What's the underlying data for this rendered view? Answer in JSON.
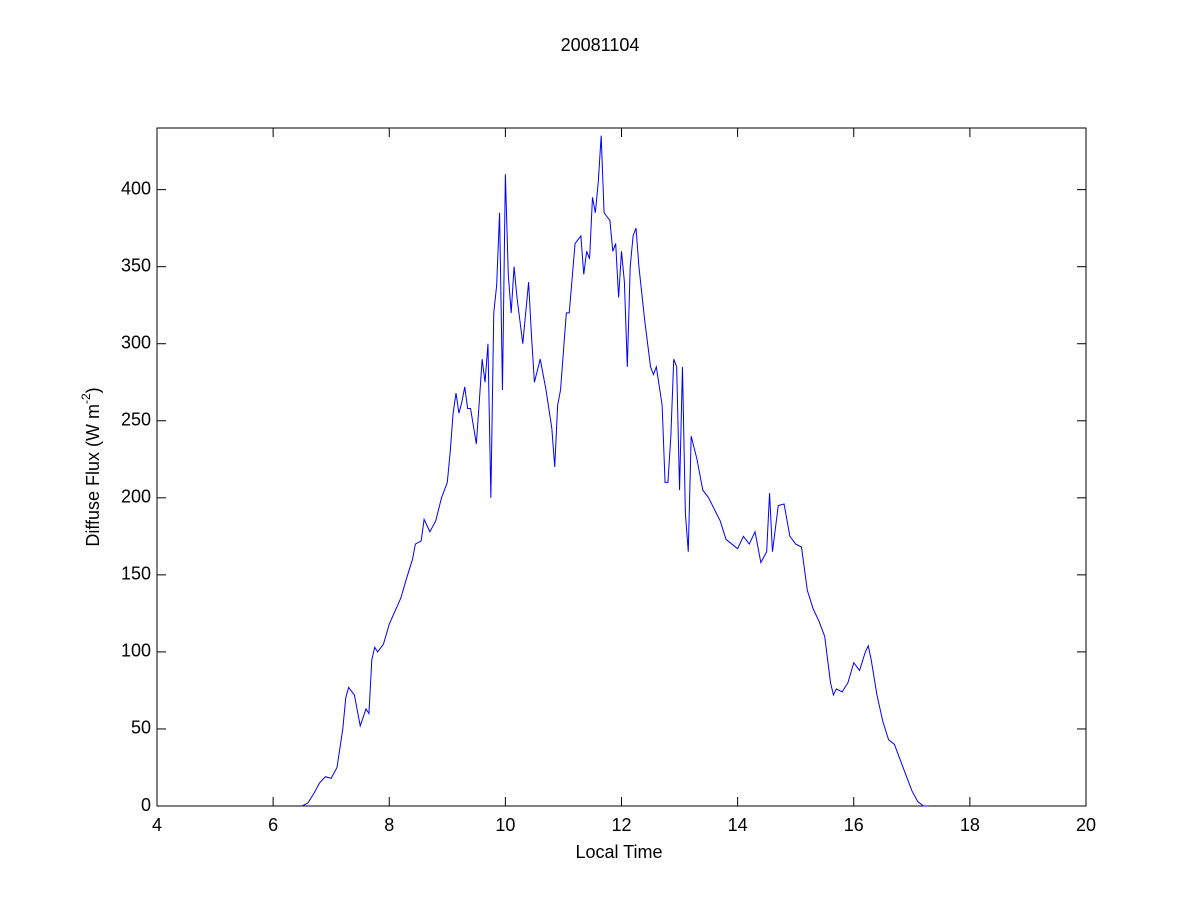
{
  "chart_data": {
    "type": "line",
    "title": "20081104",
    "xlabel": "Local Time",
    "ylabel": {
      "text": "Diffuse Flux (W m",
      "superscript": "-2",
      "suffix": ")"
    },
    "color": "#0000ff",
    "x": [
      6.5,
      6.6,
      6.7,
      6.8,
      6.9,
      7.0,
      7.1,
      7.2,
      7.25,
      7.3,
      7.4,
      7.5,
      7.6,
      7.65,
      7.7,
      7.75,
      7.8,
      7.9,
      8.0,
      8.2,
      8.3,
      8.4,
      8.45,
      8.55,
      8.6,
      8.7,
      8.8,
      8.9,
      9.0,
      9.05,
      9.1,
      9.15,
      9.2,
      9.25,
      9.3,
      9.35,
      9.4,
      9.5,
      9.55,
      9.6,
      9.65,
      9.7,
      9.75,
      9.8,
      9.85,
      9.9,
      9.95,
      10.0,
      10.05,
      10.1,
      10.15,
      10.2,
      10.3,
      10.4,
      10.45,
      10.5,
      10.6,
      10.7,
      10.8,
      10.85,
      10.9,
      10.95,
      11.0,
      11.05,
      11.1,
      11.2,
      11.3,
      11.35,
      11.4,
      11.45,
      11.5,
      11.55,
      11.6,
      11.65,
      11.7,
      11.8,
      11.85,
      11.9,
      11.95,
      12.0,
      12.05,
      12.1,
      12.15,
      12.2,
      12.25,
      12.3,
      12.4,
      12.5,
      12.55,
      12.6,
      12.7,
      12.75,
      12.8,
      12.85,
      12.9,
      12.95,
      13.0,
      13.05,
      13.1,
      13.15,
      13.2,
      13.3,
      13.4,
      13.5,
      13.7,
      13.8,
      13.9,
      14.0,
      14.1,
      14.2,
      14.3,
      14.4,
      14.5,
      14.55,
      14.6,
      14.7,
      14.8,
      14.9,
      15.0,
      15.1,
      15.2,
      15.3,
      15.4,
      15.5,
      15.6,
      15.65,
      15.7,
      15.8,
      15.9,
      16.0,
      16.1,
      16.2,
      16.25,
      16.3,
      16.4,
      16.5,
      16.6,
      16.7,
      16.8,
      16.9,
      17.0,
      17.1,
      17.2,
      17.3
    ],
    "values": [
      0,
      2,
      8,
      15,
      19,
      18,
      25,
      50,
      70,
      77,
      72,
      52,
      63,
      60,
      95,
      103,
      100,
      105,
      118,
      135,
      148,
      160,
      170,
      172,
      186,
      178,
      185,
      200,
      210,
      230,
      255,
      268,
      255,
      262,
      272,
      258,
      258,
      235,
      262,
      290,
      275,
      300,
      200,
      320,
      338,
      385,
      270,
      410,
      345,
      320,
      350,
      330,
      300,
      340,
      305,
      275,
      290,
      270,
      245,
      220,
      260,
      270,
      295,
      320,
      320,
      365,
      370,
      345,
      360,
      355,
      395,
      385,
      405,
      435,
      385,
      380,
      360,
      365,
      330,
      360,
      340,
      285,
      350,
      370,
      375,
      350,
      315,
      285,
      280,
      285,
      260,
      210,
      210,
      240,
      290,
      285,
      205,
      285,
      190,
      165,
      240,
      225,
      205,
      200,
      185,
      173,
      170,
      167,
      175,
      170,
      178,
      158,
      165,
      203,
      165,
      195,
      196,
      175,
      170,
      168,
      140,
      128,
      120,
      110,
      80,
      72,
      76,
      74,
      80,
      93,
      88,
      100,
      104,
      95,
      72,
      55,
      43,
      40,
      30,
      20,
      10,
      3,
      0,
      0
    ],
    "xlim": [
      4,
      20
    ],
    "xticks": [
      4,
      6,
      8,
      10,
      12,
      14,
      16,
      18,
      20
    ],
    "ylim": [
      0,
      440
    ],
    "yticks": [
      0,
      50,
      100,
      150,
      200,
      250,
      300,
      350,
      400
    ]
  }
}
